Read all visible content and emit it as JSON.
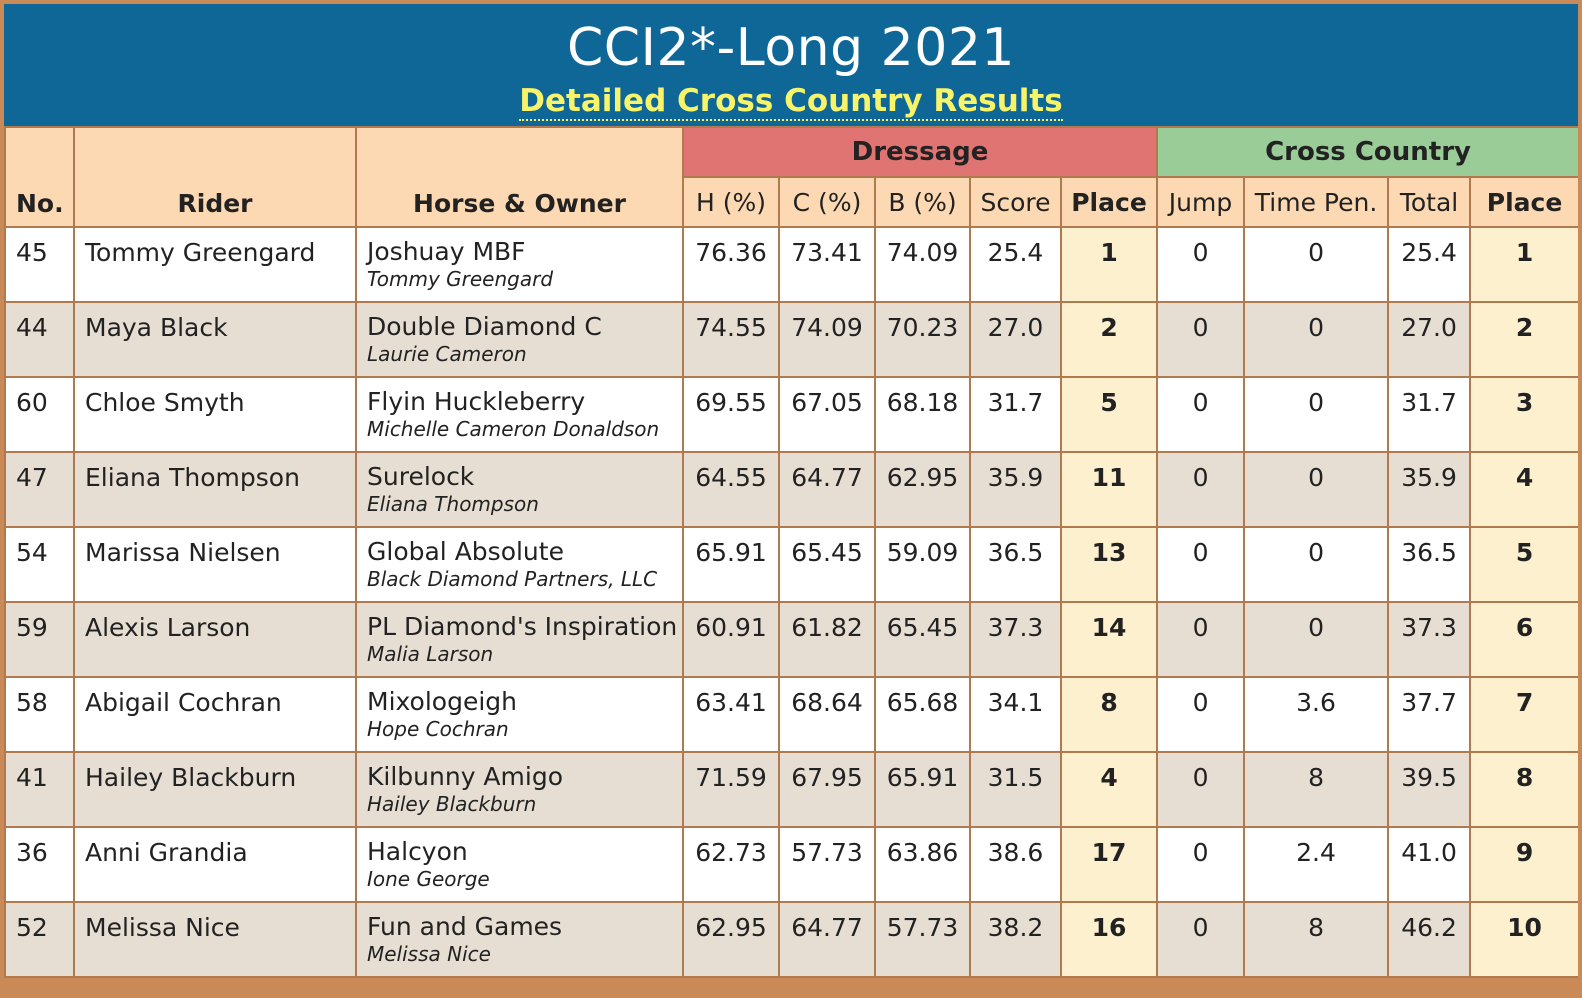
{
  "header": {
    "title": "CCI2*-Long 2021",
    "subtitle": "Detailed Cross Country Results"
  },
  "columns": {
    "no": "No.",
    "rider": "Rider",
    "horse_owner": "Horse & Owner",
    "dressage_group": "Dressage",
    "xc_group": "Cross Country",
    "h": "H (%)",
    "c": "C (%)",
    "b": "B (%)",
    "score": "Score",
    "dressage_place": "Place",
    "jump": "Jump",
    "time_pen": "Time Pen.",
    "total": "Total",
    "xc_place": "Place"
  },
  "rows": [
    {
      "no": "45",
      "rider": "Tommy Greengard",
      "horse": "Joshuay MBF",
      "owner": "Tommy Greengard",
      "h": "76.36",
      "c": "73.41",
      "b": "74.09",
      "score": "25.4",
      "dplace": "1",
      "jump": "0",
      "time": "0",
      "total": "25.4",
      "xplace": "1"
    },
    {
      "no": "44",
      "rider": "Maya Black",
      "horse": "Double Diamond C",
      "owner": "Laurie Cameron",
      "h": "74.55",
      "c": "74.09",
      "b": "70.23",
      "score": "27.0",
      "dplace": "2",
      "jump": "0",
      "time": "0",
      "total": "27.0",
      "xplace": "2"
    },
    {
      "no": "60",
      "rider": "Chloe Smyth",
      "horse": "Flyin Huckleberry",
      "owner": "Michelle Cameron Donaldson",
      "h": "69.55",
      "c": "67.05",
      "b": "68.18",
      "score": "31.7",
      "dplace": "5",
      "jump": "0",
      "time": "0",
      "total": "31.7",
      "xplace": "3"
    },
    {
      "no": "47",
      "rider": "Eliana Thompson",
      "horse": "Surelock",
      "owner": "Eliana Thompson",
      "h": "64.55",
      "c": "64.77",
      "b": "62.95",
      "score": "35.9",
      "dplace": "11",
      "jump": "0",
      "time": "0",
      "total": "35.9",
      "xplace": "4"
    },
    {
      "no": "54",
      "rider": "Marissa Nielsen",
      "horse": "Global Absolute",
      "owner": "Black Diamond Partners, LLC",
      "h": "65.91",
      "c": "65.45",
      "b": "59.09",
      "score": "36.5",
      "dplace": "13",
      "jump": "0",
      "time": "0",
      "total": "36.5",
      "xplace": "5"
    },
    {
      "no": "59",
      "rider": "Alexis Larson",
      "horse": "PL Diamond's Inspiration",
      "owner": "Malia Larson",
      "h": "60.91",
      "c": "61.82",
      "b": "65.45",
      "score": "37.3",
      "dplace": "14",
      "jump": "0",
      "time": "0",
      "total": "37.3",
      "xplace": "6"
    },
    {
      "no": "58",
      "rider": "Abigail Cochran",
      "horse": "Mixologeigh",
      "owner": "Hope Cochran",
      "h": "63.41",
      "c": "68.64",
      "b": "65.68",
      "score": "34.1",
      "dplace": "8",
      "jump": "0",
      "time": "3.6",
      "total": "37.7",
      "xplace": "7"
    },
    {
      "no": "41",
      "rider": "Hailey Blackburn",
      "horse": "Kilbunny Amigo",
      "owner": "Hailey Blackburn",
      "h": "71.59",
      "c": "67.95",
      "b": "65.91",
      "score": "31.5",
      "dplace": "4",
      "jump": "0",
      "time": "8",
      "total": "39.5",
      "xplace": "8"
    },
    {
      "no": "36",
      "rider": "Anni Grandia",
      "horse": "Halcyon",
      "owner": "Ione George",
      "h": "62.73",
      "c": "57.73",
      "b": "63.86",
      "score": "38.6",
      "dplace": "17",
      "jump": "0",
      "time": "2.4",
      "total": "41.0",
      "xplace": "9"
    },
    {
      "no": "52",
      "rider": "Melissa Nice",
      "horse": "Fun and Games",
      "owner": "Melissa Nice",
      "h": "62.95",
      "c": "64.77",
      "b": "57.73",
      "score": "38.2",
      "dplace": "16",
      "jump": "0",
      "time": "8",
      "total": "46.2",
      "xplace": "10"
    }
  ]
}
